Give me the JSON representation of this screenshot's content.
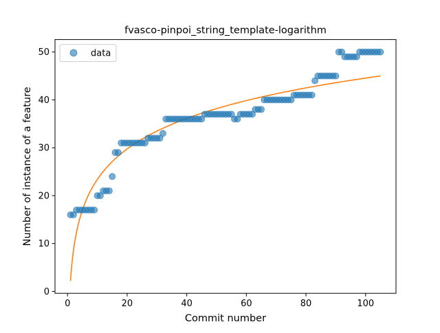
{
  "chart_data": {
    "type": "scatter",
    "title": "fvasco-pinpoi_string_template-logarithm",
    "xlabel": "Commit number",
    "ylabel": "Number of instance of a feature",
    "xlim": [
      -4.2,
      110.2
    ],
    "ylim": [
      -0.4,
      52.6
    ],
    "x_ticks": [
      0,
      20,
      40,
      60,
      80,
      100
    ],
    "y_ticks": [
      0,
      10,
      20,
      30,
      40,
      50
    ],
    "grid": false,
    "legend": {
      "position": "top-left",
      "entries": [
        "data"
      ]
    },
    "colors": {
      "points": "#1f77b4",
      "fit": "#ff7f0e"
    },
    "series": [
      {
        "name": "data",
        "kind": "points",
        "x": [
          1,
          2,
          3,
          4,
          5,
          6,
          7,
          8,
          9,
          10,
          11,
          12,
          13,
          14,
          15,
          16,
          17,
          18,
          19,
          20,
          21,
          22,
          23,
          24,
          25,
          26,
          27,
          28,
          29,
          30,
          31,
          32,
          33,
          34,
          35,
          36,
          37,
          38,
          39,
          40,
          41,
          42,
          43,
          44,
          45,
          46,
          47,
          48,
          49,
          50,
          51,
          52,
          53,
          54,
          55,
          56,
          57,
          58,
          59,
          60,
          61,
          62,
          63,
          64,
          65,
          66,
          67,
          68,
          69,
          70,
          71,
          72,
          73,
          74,
          75,
          76,
          77,
          78,
          79,
          80,
          81,
          82,
          83,
          84,
          85,
          86,
          87,
          88,
          89,
          90,
          91,
          92,
          93,
          94,
          95,
          96,
          97,
          98,
          99,
          100,
          101,
          102,
          103,
          104,
          105
        ],
        "y": [
          16,
          16,
          17,
          17,
          17,
          17,
          17,
          17,
          17,
          20,
          20,
          21,
          21,
          21,
          24,
          29,
          29,
          31,
          31,
          31,
          31,
          31,
          31,
          31,
          31,
          31,
          32,
          32,
          32,
          32,
          32,
          33,
          36,
          36,
          36,
          36,
          36,
          36,
          36,
          36,
          36,
          36,
          36,
          36,
          36,
          37,
          37,
          37,
          37,
          37,
          37,
          37,
          37,
          37,
          37,
          36,
          36,
          37,
          37,
          37,
          37,
          37,
          38,
          38,
          38,
          40,
          40,
          40,
          40,
          40,
          40,
          40,
          40,
          40,
          40,
          41,
          41,
          41,
          41,
          41,
          41,
          41,
          44,
          45,
          45,
          45,
          45,
          45,
          45,
          45,
          50,
          50,
          49,
          49,
          49,
          49,
          49,
          50,
          50,
          50,
          50,
          50,
          50,
          50,
          50
        ]
      },
      {
        "kind": "fit-line",
        "x_start": 1,
        "x_end": 105,
        "y_at_x_start": 2.2,
        "y_at_x_end": 45
      }
    ]
  }
}
